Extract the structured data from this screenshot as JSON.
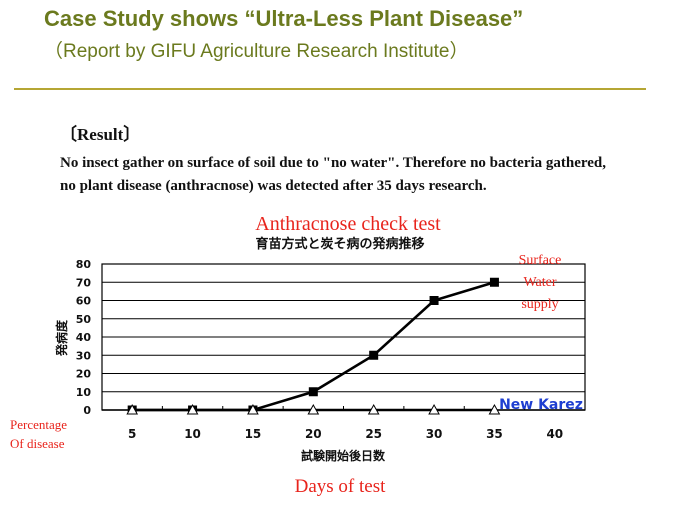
{
  "slide": {
    "title": "Case Study shows “Ultra-Less Plant Disease”",
    "subtitle": "（Report by GIFU Agriculture Research Institute）",
    "result_heading": "〔Result〕",
    "result_text": "No insect gather on surface of soil due to \"no water\". Therefore no bacteria gathered, no plant disease (anthracnose) was detected after 35 days research."
  },
  "colors": {
    "title": "#6b7a1e",
    "rule": "#b5a634",
    "annotation_red": "#e8241c",
    "label_blue": "#1f3fd1",
    "series": "#000000"
  },
  "chart_data": {
    "type": "line",
    "title": "Anthracnose check test",
    "subtitle": "育苗方式と炭そ病の発病推移",
    "ylabel": "発病度",
    "xlabel": "試験開始後日数",
    "xlabel_annotation": "Days of test",
    "ylabel_annotation": [
      "Percentage",
      "Of disease"
    ],
    "x_ticks": [
      "5",
      "10",
      "15",
      "20",
      "25",
      "30",
      "35",
      "40"
    ],
    "y_ticks": [
      "0",
      "10",
      "20",
      "30",
      "40",
      "50",
      "60",
      "70",
      "80"
    ],
    "ylim": [
      0,
      80
    ],
    "grid": true,
    "series": [
      {
        "name": "Surface Water supply",
        "label_lines": [
          "Surface",
          "Water",
          "supply"
        ],
        "marker": "filled-square",
        "x": [
          5,
          10,
          15,
          20,
          25,
          30,
          35
        ],
        "y": [
          0,
          0,
          0,
          10,
          30,
          60,
          70
        ]
      },
      {
        "name": "New Karez",
        "marker": "open-triangle",
        "x": [
          5,
          10,
          15,
          20,
          25,
          30,
          35
        ],
        "y": [
          0,
          0,
          0,
          0,
          0,
          0,
          0
        ]
      }
    ]
  }
}
